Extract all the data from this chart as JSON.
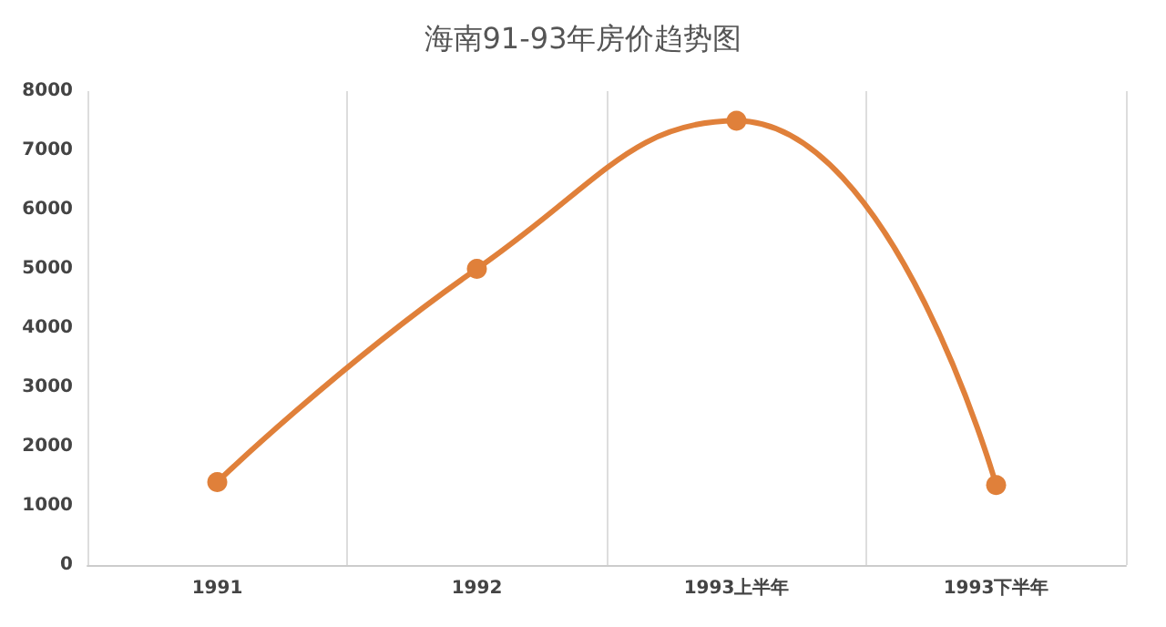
{
  "chart_data": {
    "type": "line",
    "title": "海南91-93年房价趋势图",
    "categories": [
      "1991",
      "1992",
      "1993上半年",
      "1993下半年"
    ],
    "series": [
      {
        "color": "#e0803a",
        "values": [
          1400,
          5000,
          7500,
          1350
        ]
      }
    ],
    "ylim": [
      0,
      8000
    ],
    "yticks": [
      0,
      1000,
      2000,
      3000,
      4000,
      5000,
      6000,
      7000,
      8000
    ],
    "grid": "x",
    "marker": "circle",
    "line_style": "solid"
  }
}
